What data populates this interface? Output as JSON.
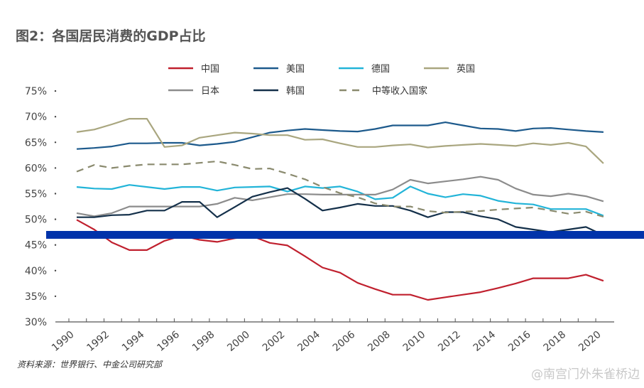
{
  "title": "图2：各国居民消费的GDP占比",
  "source": "资料来源：世界银行、中金公司研究部",
  "watermark": "@南宫门外朱雀桥边",
  "chart_data": {
    "type": "line",
    "title": "图2：各国居民消费的GDP占比",
    "xlabel": "",
    "ylabel": "",
    "ylim": [
      30,
      75
    ],
    "xlim": [
      1990,
      2020
    ],
    "grid": false,
    "legend_position": "top",
    "y_ticks": [
      "30%",
      "35%",
      "40%",
      "45%",
      "50%",
      "55%",
      "60%",
      "65%",
      "70%",
      "75%"
    ],
    "x_ticks": [
      "1990",
      "1992",
      "1994",
      "1996",
      "1998",
      "2000",
      "2002",
      "2004",
      "2006",
      "2008",
      "2010",
      "2012",
      "2014",
      "2016",
      "2018",
      "2020"
    ],
    "x": [
      1990,
      1991,
      1992,
      1993,
      1994,
      1995,
      1996,
      1997,
      1998,
      1999,
      2000,
      2001,
      2002,
      2003,
      2004,
      2005,
      2006,
      2007,
      2008,
      2009,
      2010,
      2011,
      2012,
      2013,
      2014,
      2015,
      2016,
      2017,
      2018,
      2019,
      2020
    ],
    "series": [
      {
        "name": "中国",
        "color": "#c0202e",
        "dashed": false,
        "values": [
          49.9,
          48.0,
          45.5,
          44.0,
          44.0,
          45.8,
          46.8,
          46.0,
          45.6,
          46.3,
          46.7,
          45.4,
          44.9,
          42.8,
          40.6,
          39.6,
          37.6,
          36.4,
          35.3,
          35.3,
          34.3,
          34.8,
          35.3,
          35.8,
          36.6,
          37.5,
          38.5,
          38.5,
          38.5,
          39.2,
          38.0
        ]
      },
      {
        "name": "美国",
        "color": "#1d5a8c",
        "dashed": false,
        "values": [
          63.7,
          63.9,
          64.2,
          64.8,
          64.8,
          64.9,
          64.9,
          64.4,
          64.7,
          65.1,
          66.0,
          66.9,
          67.3,
          67.6,
          67.4,
          67.2,
          67.1,
          67.6,
          68.3,
          68.3,
          68.3,
          68.9,
          68.3,
          67.7,
          67.6,
          67.2,
          67.7,
          67.8,
          67.5,
          67.2,
          67.0
        ]
      },
      {
        "name": "德国",
        "color": "#22b4d8",
        "dashed": false,
        "values": [
          56.3,
          56.0,
          55.9,
          56.7,
          56.3,
          55.9,
          56.3,
          56.3,
          55.6,
          56.2,
          56.3,
          56.4,
          55.4,
          56.4,
          56.1,
          56.4,
          55.4,
          53.9,
          54.2,
          56.4,
          55.0,
          54.3,
          54.9,
          54.6,
          53.6,
          53.1,
          52.9,
          52.0,
          52.0,
          52.0,
          50.7
        ]
      },
      {
        "name": "英国",
        "color": "#a9a67f",
        "dashed": false,
        "values": [
          67.0,
          67.5,
          68.5,
          69.6,
          69.6,
          64.1,
          64.4,
          65.9,
          66.4,
          66.9,
          66.7,
          66.4,
          66.4,
          65.5,
          65.6,
          64.8,
          64.1,
          64.1,
          64.4,
          64.6,
          64.0,
          64.3,
          64.5,
          64.7,
          64.5,
          64.3,
          64.8,
          64.5,
          64.9,
          64.2,
          60.9
        ]
      },
      {
        "name": "日本",
        "color": "#8c8c8c",
        "dashed": false,
        "values": [
          51.2,
          50.6,
          51.2,
          52.5,
          52.5,
          52.5,
          52.5,
          52.5,
          53.0,
          54.2,
          53.7,
          54.3,
          54.9,
          54.9,
          54.8,
          54.8,
          54.8,
          54.8,
          55.8,
          57.7,
          57.0,
          57.4,
          57.8,
          58.3,
          57.7,
          56.0,
          54.8,
          54.5,
          55.0,
          54.5,
          53.5
        ]
      },
      {
        "name": "韩国",
        "color": "#14304a",
        "dashed": false,
        "values": [
          50.4,
          50.4,
          50.8,
          50.9,
          51.7,
          51.7,
          53.4,
          53.4,
          50.4,
          52.4,
          54.4,
          55.3,
          56.1,
          54.0,
          51.7,
          52.3,
          53.0,
          52.6,
          52.6,
          51.7,
          50.4,
          51.4,
          51.4,
          50.6,
          50.0,
          48.5,
          48.0,
          47.5,
          48.0,
          48.5,
          46.9
        ]
      },
      {
        "name": "中等收入国家",
        "color": "#8a8a6e",
        "dashed": true,
        "values": [
          59.3,
          60.6,
          60.0,
          60.4,
          60.7,
          60.7,
          60.7,
          61.0,
          61.3,
          60.6,
          59.8,
          59.9,
          58.9,
          57.8,
          56.3,
          55.1,
          54.3,
          53.1,
          52.5,
          52.5,
          51.6,
          51.3,
          51.5,
          51.6,
          51.9,
          52.1,
          52.3,
          51.7,
          51.1,
          51.5,
          50.5
        ]
      }
    ],
    "overlay_bar_color": "#0033aa"
  }
}
